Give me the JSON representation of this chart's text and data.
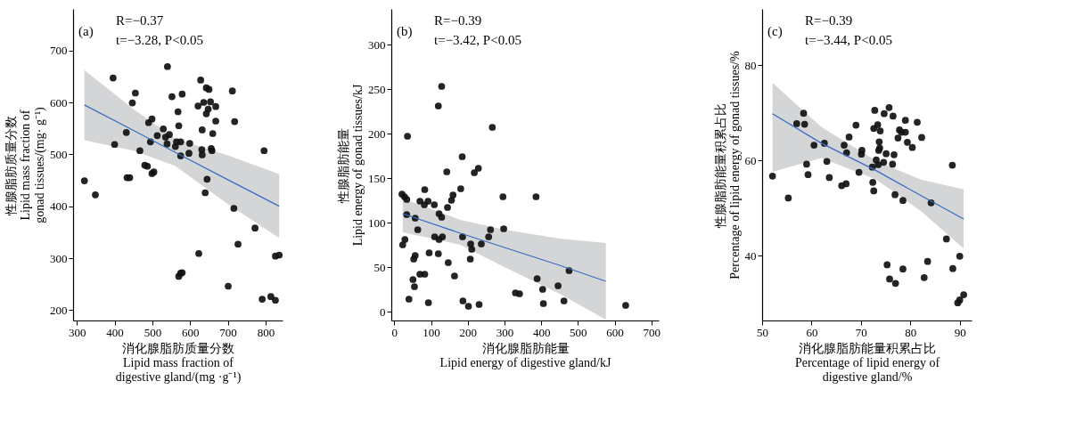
{
  "chart_data": [
    {
      "type": "scatter",
      "xlabel": [
        "消化腺脂肪质量分数",
        "Lipid mass fraction of",
        "digestive gland/(mg ·g⁻¹)"
      ],
      "ylabel": [
        "性腺脂肪质量分数",
        "Lipid mass fraction of",
        "gonad tissues/(mg· g⁻¹)"
      ],
      "annotations": [
        "(a)",
        "R=−0.37",
        "t=−3.28, P<0.05"
      ],
      "xlim": [
        290,
        845
      ],
      "ylim": [
        180,
        780
      ],
      "xticks": [
        300,
        400,
        500,
        600,
        700,
        800
      ],
      "yticks": [
        200,
        300,
        400,
        500,
        600,
        700
      ],
      "grid": false,
      "series": [
        {
          "type": "scatter",
          "marker": "circle",
          "color": "#111111",
          "x": [
            320,
            349,
            396,
            455,
            447,
            400,
            431,
            433,
            440,
            467,
            480,
            487,
            490,
            499,
            495,
            499,
            504,
            513,
            529,
            535,
            545,
            540,
            539,
            552,
            561,
            564,
            568,
            570,
            575,
            579,
            575,
            570,
            575,
            579,
            599,
            597,
            621,
            628,
            632,
            636,
            631,
            632,
            643,
            650,
            643,
            648,
            654,
            668,
            668,
            660,
            656,
            658,
            645,
            640,
            623,
            712,
            718,
            716,
            727,
            701,
            772,
            796,
            791,
            814,
            826,
            826,
            836
          ],
          "values": [
            449,
            422,
            647,
            618,
            599,
            519,
            542,
            455,
            455,
            507,
            479,
            477,
            561,
            568,
            524,
            463,
            466,
            536,
            549,
            533,
            538,
            669,
            520,
            611,
            515,
            524,
            582,
            555,
            524,
            616,
            497,
            265,
            271,
            272,
            521,
            502,
            593,
            643,
            547,
            600,
            509,
            499,
            628,
            625,
            578,
            587,
            601,
            592,
            564,
            540,
            511,
            507,
            452,
            426,
            309,
            622,
            563,
            396,
            327,
            246,
            358,
            507,
            221,
            226,
            219,
            304,
            306
          ]
        },
        {
          "type": "line",
          "line_style": "solid",
          "color": "#3b6cc2",
          "x": [
            320,
            450,
            560,
            700,
            836
          ],
          "values": [
            595,
            546,
            504,
            451,
            400
          ],
          "lower": [
            527,
            507,
            478,
            404,
            339
          ],
          "upper": [
            662,
            587,
            530,
            498,
            462
          ]
        }
      ]
    },
    {
      "type": "scatter",
      "xlabel": [
        "消化腺脂肪能量",
        "Lipid energy of digestive gland/kJ"
      ],
      "ylabel": [
        "性腺脂肪能量",
        "Lipid energy of gonad tissues/kJ"
      ],
      "annotations": [
        "(b)",
        "R=−0.39",
        "t=−3.42, P<0.05"
      ],
      "xlim": [
        -8,
        720
      ],
      "ylim": [
        -10,
        340
      ],
      "xticks": [
        0,
        100,
        200,
        300,
        400,
        500,
        600,
        700
      ],
      "yticks": [
        0,
        50,
        100,
        150,
        200,
        250,
        300
      ],
      "grid": false,
      "series": [
        {
          "type": "scatter",
          "marker": "circle",
          "color": "#111111",
          "x": [
            21,
            28,
            34,
            36,
            34,
            29,
            23,
            40,
            53,
            57,
            51,
            55,
            57,
            64,
            70,
            83,
            70,
            83,
            82,
            92,
            95,
            93,
            109,
            110,
            120,
            129,
            120,
            122,
            122,
            129,
            131,
            143,
            145,
            147,
            156,
            160,
            164,
            181,
            185,
            186,
            187,
            202,
            208,
            211,
            207,
            218,
            229,
            231,
            237,
            257,
            262,
            267,
            296,
            298,
            330,
            341,
            386,
            389,
            404,
            406,
            446,
            462,
            476,
            630
          ],
          "values": [
            132,
            129,
            126,
            197,
            109,
            81,
            75,
            14,
            59,
            63,
            36,
            28,
            105,
            92,
            42,
            42,
            124,
            137,
            120,
            124,
            66,
            10,
            120,
            84,
            231,
            253,
            65,
            81,
            110,
            106,
            84,
            157,
            117,
            55,
            125,
            131,
            40,
            138,
            174,
            84,
            12,
            6,
            76,
            70,
            59,
            156,
            161,
            8,
            76,
            84,
            92,
            207,
            129,
            93,
            21,
            20,
            129,
            37,
            25,
            9,
            29,
            12,
            46,
            7
          ]
        },
        {
          "type": "line",
          "line_style": "solid",
          "color": "#3b6cc2",
          "x": [
            23,
            180,
            300,
            450,
            576
          ],
          "values": [
            110,
            88,
            72,
            52,
            34
          ],
          "lower": [
            89,
            75,
            50,
            20,
            -9
          ],
          "upper": [
            127,
            103,
            92,
            82,
            77
          ]
        }
      ]
    },
    {
      "type": "scatter",
      "xlabel": [
        "消化腺脂肪能量积累占比",
        "Percentage of lipid energy of",
        "digestive gland/%"
      ],
      "ylabel": [
        "性腺脂肪能量积累占比",
        "Percentage of lipid energy of gonad tissues/%"
      ],
      "annotations": [
        "(c)",
        "R=−0.39",
        "t=−3.44, P<0.05"
      ],
      "xlim": [
        50,
        92.4
      ],
      "ylim": [
        26.4,
        91.8
      ],
      "xticks": [
        50,
        60,
        70,
        80,
        90
      ],
      "yticks": [
        40,
        60,
        80
      ],
      "grid": false,
      "series": [
        {
          "type": "scatter",
          "marker": "circle",
          "color": "#111111",
          "x": [
            52.1,
            55.3,
            57.0,
            58.4,
            58.6,
            59.0,
            59.3,
            60.5,
            62.6,
            63.1,
            63.6,
            66.1,
            67.0,
            66.6,
            67.1,
            67.6,
            69.0,
            69.6,
            70.1,
            70.2,
            72.3,
            72.4,
            72.6,
            72.8,
            72.6,
            73.4,
            73.9,
            73.7,
            73.6,
            73.8,
            73.1,
            73.5,
            74.6,
            74.7,
            75.1,
            75.7,
            76.5,
            76.4,
            76.7,
            76.9,
            77.5,
            77.8,
            78.2,
            79.0,
            79.0,
            79.4,
            78.5,
            80.4,
            81.4,
            82.3,
            84.2,
            75.3,
            75.8,
            77.0,
            78.5,
            82.8,
            83.5,
            87.3,
            88.5,
            88.6,
            90.0,
            89.6,
            90.0,
            90.8
          ],
          "values": [
            56.7,
            52.1,
            67.7,
            69.9,
            67.6,
            59.2,
            57.0,
            63.2,
            63.6,
            59.8,
            56.4,
            54.7,
            55.1,
            63.2,
            61.6,
            64.9,
            67.4,
            57.5,
            61.3,
            62.1,
            58.6,
            55.4,
            53.6,
            70.5,
            66.7,
            67.5,
            66.2,
            63.9,
            62.1,
            62.6,
            60.1,
            59.1,
            59.6,
            69.8,
            61.4,
            71.1,
            69.3,
            59.2,
            61.2,
            52.8,
            64.7,
            66.4,
            65.9,
            65.9,
            68.4,
            63.8,
            51.6,
            62.7,
            68.0,
            64.8,
            51.1,
            38.1,
            35.1,
            34.2,
            37.2,
            35.4,
            38.8,
            43.5,
            59.0,
            37.3,
            39.9,
            30.1,
            30.7,
            31.8
          ]
        },
        {
          "type": "line",
          "line_style": "solid",
          "color": "#3b6cc2",
          "x": [
            52.1,
            62,
            73,
            82,
            90.8
          ],
          "values": [
            69.8,
            63.6,
            57.9,
            52.7,
            47.7
          ],
          "lower": [
            57.6,
            60.5,
            56,
            49.5,
            41.5
          ],
          "upper": [
            76.3,
            67,
            60,
            56,
            53.9
          ]
        }
      ]
    }
  ]
}
